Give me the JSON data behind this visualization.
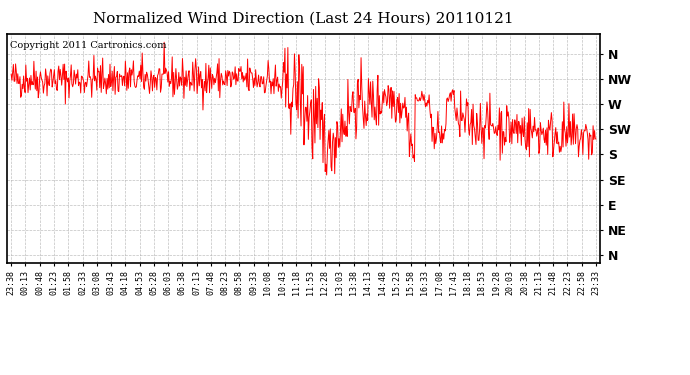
{
  "title": "Normalized Wind Direction (Last 24 Hours) 20110121",
  "copyright_text": "Copyright 2011 Cartronics.com",
  "line_color": "#ff0000",
  "background_color": "#ffffff",
  "plot_bg_color": "#ffffff",
  "grid_color": "#b0b0b0",
  "title_fontsize": 11,
  "ytick_labels": [
    "N",
    "NW",
    "W",
    "SW",
    "S",
    "SE",
    "E",
    "NE",
    "N"
  ],
  "ytick_values": [
    8,
    7,
    6,
    5,
    4,
    3,
    2,
    1,
    0
  ],
  "ylim": [
    -0.3,
    8.8
  ],
  "xtick_labels": [
    "23:38",
    "00:13",
    "00:48",
    "01:23",
    "01:58",
    "02:33",
    "03:08",
    "03:43",
    "04:18",
    "04:53",
    "05:28",
    "06:03",
    "06:38",
    "07:13",
    "07:48",
    "08:23",
    "08:58",
    "09:33",
    "10:08",
    "10:43",
    "11:18",
    "11:53",
    "12:28",
    "13:03",
    "13:38",
    "14:13",
    "14:48",
    "15:23",
    "15:58",
    "16:33",
    "17:08",
    "17:43",
    "18:18",
    "18:53",
    "19:28",
    "20:03",
    "20:38",
    "21:13",
    "21:48",
    "22:23",
    "22:58",
    "23:33"
  ],
  "num_points": 800,
  "seed": 42
}
